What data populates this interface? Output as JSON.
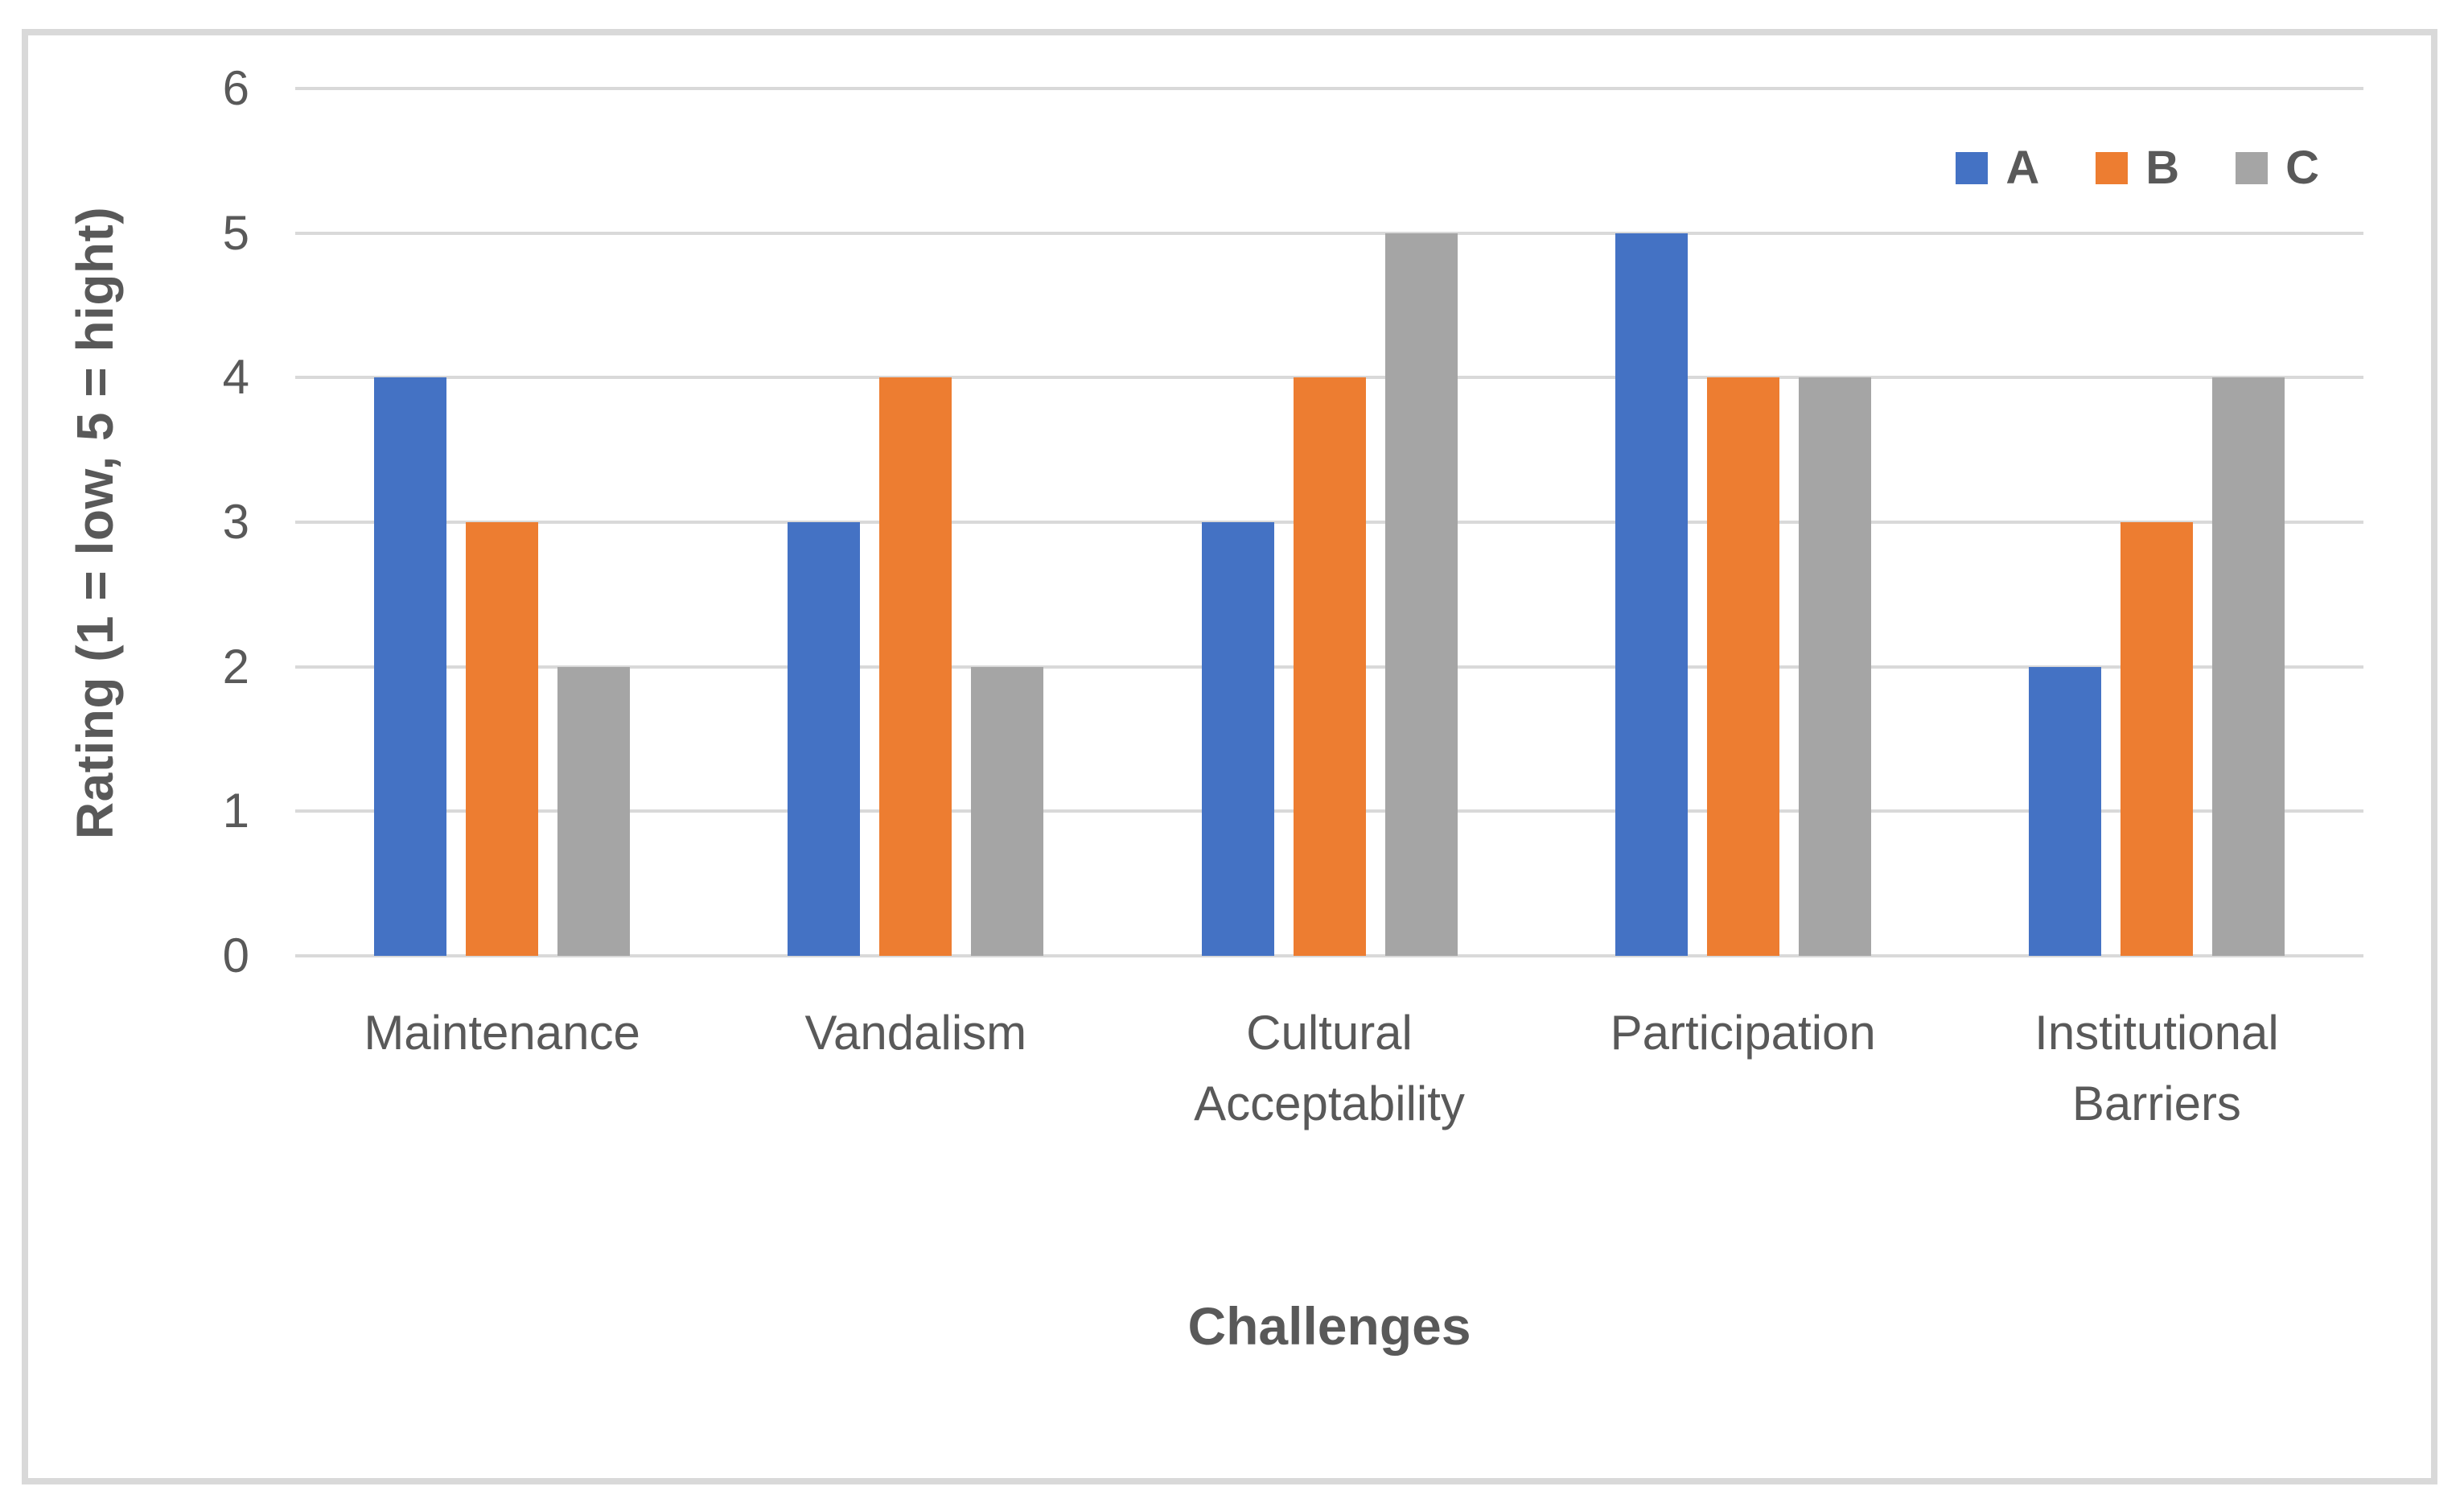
{
  "chart_data": {
    "type": "bar",
    "title": "",
    "xlabel": "Challenges",
    "ylabel": "Rating (1 = low, 5 = hight)",
    "categories": [
      "Maintenance",
      "Vandalism",
      "Cultural Acceptability",
      "Participation",
      "Institutional Barriers"
    ],
    "series": [
      {
        "name": "A",
        "color": "#4472C4",
        "values": [
          4,
          3,
          3,
          5,
          2
        ]
      },
      {
        "name": "B",
        "color": "#ED7D31",
        "values": [
          3,
          4,
          4,
          4,
          3
        ]
      },
      {
        "name": "C",
        "color": "#A5A5A5",
        "values": [
          2,
          2,
          5,
          4,
          4
        ]
      }
    ],
    "ylim": [
      0,
      6
    ],
    "yticks": [
      0,
      1,
      2,
      3,
      4,
      5,
      6
    ],
    "grid": true,
    "legend_position": "top-right"
  },
  "colors": {
    "gridline": "#D9D9D9",
    "frame": "#D9D9D9",
    "axis_text": "#595959",
    "background": "#FFFFFF"
  }
}
